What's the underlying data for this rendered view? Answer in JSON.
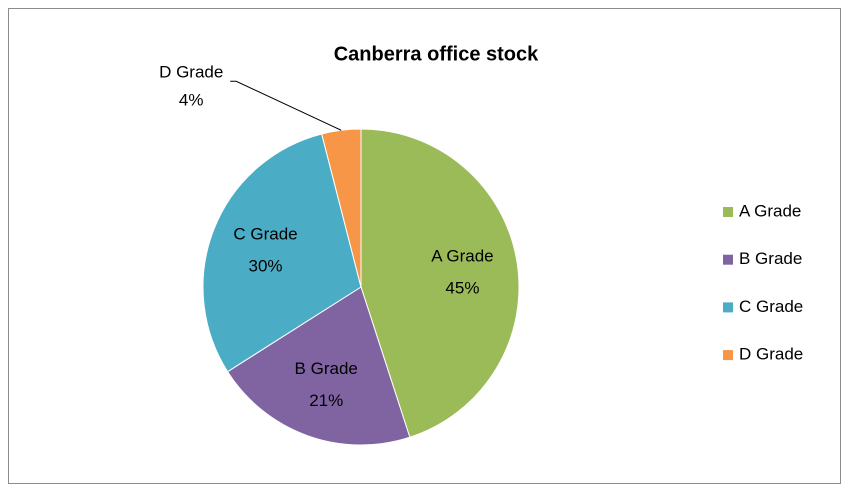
{
  "chart_data": {
    "type": "pie",
    "title": "Canberra office stock",
    "categories": [
      "A Grade",
      "B Grade",
      "C Grade",
      "D Grade"
    ],
    "values": [
      45,
      21,
      30,
      4
    ],
    "value_labels": [
      "45%",
      "21%",
      "30%",
      "4%"
    ],
    "colors": [
      "#9bbb59",
      "#8064a2",
      "#4bacc6",
      "#f79646"
    ],
    "legend": "right"
  }
}
